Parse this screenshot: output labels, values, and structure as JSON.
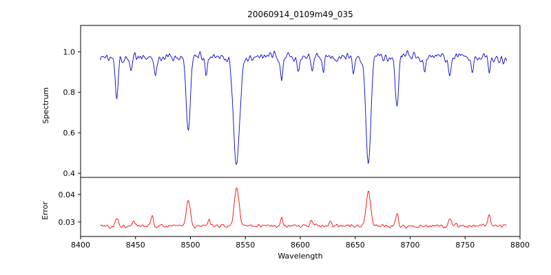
{
  "title": "20060914_0109m49_035",
  "chart_data": {
    "type": "line",
    "title": "20060914_0109m49_035",
    "xlabel": "Wavelength",
    "xlim": [
      8400,
      8800
    ],
    "x_range": [
      8418,
      8788
    ],
    "step": 0.75,
    "seed": 1337,
    "x_ticks": [
      {
        "value": 8400,
        "label": "8400"
      },
      {
        "value": 8450,
        "label": "8450"
      },
      {
        "value": 8500,
        "label": "8500"
      },
      {
        "value": 8550,
        "label": "8550"
      },
      {
        "value": 8600,
        "label": "8600"
      },
      {
        "value": 8650,
        "label": "8650"
      },
      {
        "value": 8700,
        "label": "8700"
      },
      {
        "value": 8750,
        "label": "8750"
      },
      {
        "value": 8800,
        "label": "8800"
      }
    ],
    "panels": [
      {
        "name": "spectrum",
        "ylabel": "Spectrum",
        "color": "#0000cc",
        "ylim": [
          0.38,
          1.13
        ],
        "baseline": 0.975,
        "noise_amp": 0.045,
        "y_ticks": [
          {
            "value": 1.0,
            "label": "1.0"
          },
          {
            "value": 0.8,
            "label": "0.8"
          },
          {
            "value": 0.6,
            "label": "0.6"
          },
          {
            "value": 0.4,
            "label": "0.4"
          }
        ],
        "features": [
          {
            "x": 8433,
            "amp": -0.185,
            "w": 1.3
          },
          {
            "x": 8446,
            "amp": -0.08,
            "w": 1.0
          },
          {
            "x": 8468,
            "amp": -0.1,
            "w": 1.2
          },
          {
            "x": 8498,
            "amp": -0.385,
            "w": 1.8
          },
          {
            "x": 8514,
            "amp": -0.08,
            "w": 1.0
          },
          {
            "x": 8542,
            "amp": -0.53,
            "w": 2.8
          },
          {
            "x": 8583,
            "amp": -0.1,
            "w": 1.0
          },
          {
            "x": 8598,
            "amp": -0.09,
            "w": 1.0
          },
          {
            "x": 8611,
            "amp": -0.07,
            "w": 1.0
          },
          {
            "x": 8621,
            "amp": -0.08,
            "w": 1.0
          },
          {
            "x": 8648,
            "amp": -0.07,
            "w": 1.0
          },
          {
            "x": 8662,
            "amp": -0.545,
            "w": 2.2
          },
          {
            "x": 8688,
            "amp": -0.25,
            "w": 1.5
          },
          {
            "x": 8713,
            "amp": -0.07,
            "w": 1.0
          },
          {
            "x": 8736,
            "amp": -0.1,
            "w": 1.2
          },
          {
            "x": 8757,
            "amp": -0.08,
            "w": 1.0
          },
          {
            "x": 8772,
            "amp": -0.09,
            "w": 1.0
          }
        ]
      },
      {
        "name": "error",
        "ylabel": "Error",
        "color": "#ff0000",
        "ylim": [
          0.0247,
          0.0462
        ],
        "baseline": 0.0285,
        "noise_amp": 0.0013,
        "y_ticks": [
          {
            "value": 0.04,
            "label": "0.04"
          },
          {
            "value": 0.03,
            "label": "0.03"
          }
        ],
        "features": [
          {
            "x": 8433,
            "amp": 0.003,
            "w": 1.2
          },
          {
            "x": 8448,
            "amp": 0.002,
            "w": 1.0
          },
          {
            "x": 8465,
            "amp": 0.0035,
            "w": 1.2
          },
          {
            "x": 8498,
            "amp": 0.0095,
            "w": 1.8
          },
          {
            "x": 8517,
            "amp": 0.0025,
            "w": 1.0
          },
          {
            "x": 8542,
            "amp": 0.0135,
            "w": 2.2
          },
          {
            "x": 8583,
            "amp": 0.003,
            "w": 1.0
          },
          {
            "x": 8610,
            "amp": 0.002,
            "w": 1.0
          },
          {
            "x": 8627,
            "amp": 0.002,
            "w": 1.0
          },
          {
            "x": 8662,
            "amp": 0.013,
            "w": 2.0
          },
          {
            "x": 8688,
            "amp": 0.004,
            "w": 1.3
          },
          {
            "x": 8736,
            "amp": 0.003,
            "w": 1.2
          },
          {
            "x": 8772,
            "amp": 0.0035,
            "w": 1.2
          }
        ]
      }
    ]
  }
}
